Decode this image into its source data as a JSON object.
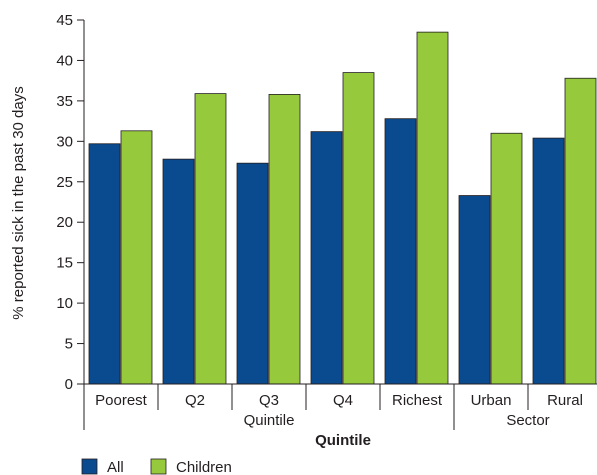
{
  "chart_data": {
    "type": "bar",
    "ylabel": "% reported sick in the past 30 days",
    "xlabel": "Quintile",
    "ylim": [
      0,
      45
    ],
    "yticks": [
      0,
      5,
      10,
      15,
      20,
      25,
      30,
      35,
      40,
      45
    ],
    "categories": [
      "Poorest",
      "Q2",
      "Q3",
      "Q4",
      "Richest",
      "Urban",
      "Rural"
    ],
    "groups": [
      {
        "label": "Quintile",
        "categories": [
          "Poorest",
          "Q2",
          "Q3",
          "Q4",
          "Richest"
        ]
      },
      {
        "label": "Sector",
        "categories": [
          "Urban",
          "Rural"
        ]
      }
    ],
    "series": [
      {
        "name": "All",
        "color": "#0a4a8e",
        "values": [
          29.7,
          27.8,
          27.3,
          31.2,
          32.8,
          23.3,
          30.4
        ]
      },
      {
        "name": "Children",
        "color": "#97c93d",
        "values": [
          31.3,
          35.9,
          35.8,
          38.5,
          43.5,
          31.0,
          37.8
        ]
      }
    ],
    "legend_position": "bottom-left",
    "grid": false
  }
}
